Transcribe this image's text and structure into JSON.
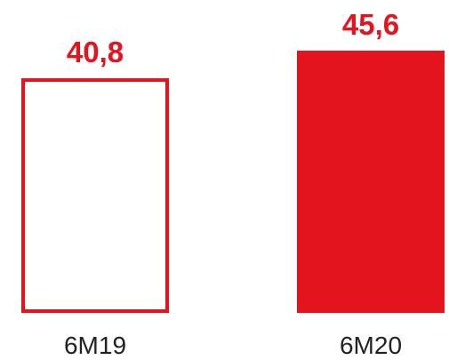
{
  "chart_data": {
    "type": "bar",
    "categories": [
      "6M19",
      "6M20"
    ],
    "values": [
      40.8,
      45.6
    ],
    "data_labels": [
      "40,8",
      "45,6"
    ],
    "title": "",
    "xlabel": "",
    "ylabel": "",
    "ylim": [
      0,
      45.6
    ],
    "grid": false,
    "legend": "none",
    "bar_styles": [
      "outline",
      "filled"
    ],
    "colors": {
      "accent": "#e3141e",
      "tick_text": "#222222",
      "background": "#ffffff"
    }
  }
}
